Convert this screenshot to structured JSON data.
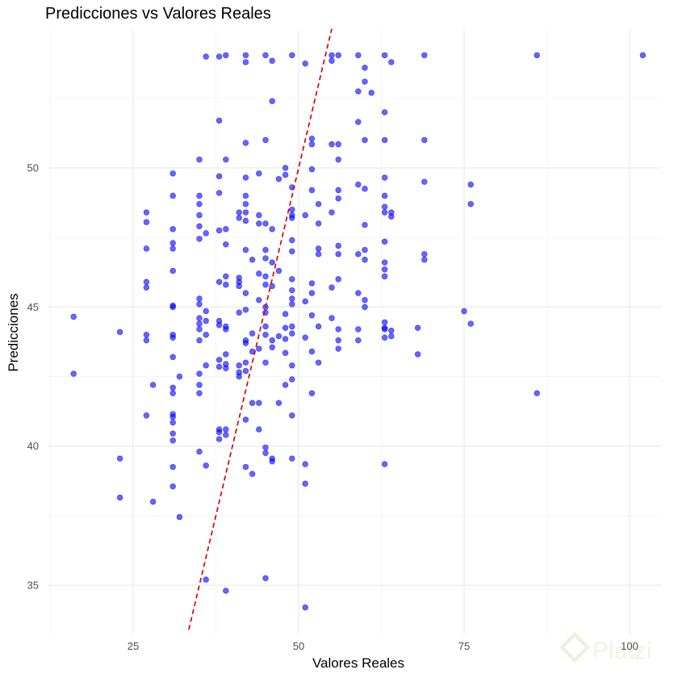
{
  "chart_data": {
    "type": "scatter",
    "title": "Predicciones vs Valores Reales",
    "xlabel": "Valores Reales",
    "ylabel": "Predicciones",
    "xlim": [
      12.5,
      105
    ],
    "ylim": [
      33.4,
      55
    ],
    "x_ticks": [
      25,
      50,
      75,
      100
    ],
    "y_ticks": [
      35,
      40,
      45,
      50
    ],
    "x_tick_labels": [
      "25",
      "50",
      "75",
      "100"
    ],
    "y_tick_labels": [
      "35",
      "40",
      "45",
      "50"
    ],
    "grid": true,
    "point_color": "#0000ff",
    "reference_line": {
      "style": "dashed",
      "color": "#dd0000",
      "description": "y = x"
    },
    "points": [
      [
        16,
        44.65
      ],
      [
        16,
        42.6
      ],
      [
        23,
        44.1
      ],
      [
        23,
        39.55
      ],
      [
        23,
        38.15
      ],
      [
        28,
        38.0
      ],
      [
        32,
        37.45
      ],
      [
        27,
        48.4
      ],
      [
        27,
        48.05
      ],
      [
        27,
        47.1
      ],
      [
        27,
        45.9
      ],
      [
        27,
        45.7
      ],
      [
        27,
        44.0
      ],
      [
        27,
        43.8
      ],
      [
        27,
        41.1
      ],
      [
        28,
        42.2
      ],
      [
        31,
        49.8
      ],
      [
        31,
        49.0
      ],
      [
        31,
        47.8
      ],
      [
        31,
        47.3
      ],
      [
        31,
        47.1
      ],
      [
        31,
        46.3
      ],
      [
        31,
        45.05
      ],
      [
        31,
        45.0
      ],
      [
        31,
        44.0
      ],
      [
        31,
        43.9
      ],
      [
        31,
        43.2
      ],
      [
        31,
        42.1
      ],
      [
        31,
        41.9
      ],
      [
        31,
        41.15
      ],
      [
        31,
        41.05
      ],
      [
        31,
        40.85
      ],
      [
        31,
        40.45
      ],
      [
        31,
        40.2
      ],
      [
        31,
        39.25
      ],
      [
        31,
        38.55
      ],
      [
        32,
        42.5
      ],
      [
        35,
        50.3
      ],
      [
        35,
        49.0
      ],
      [
        35,
        48.7
      ],
      [
        35,
        48.3
      ],
      [
        35,
        47.9
      ],
      [
        35,
        47.45
      ],
      [
        35,
        45.3
      ],
      [
        35,
        45.1
      ],
      [
        35,
        44.6
      ],
      [
        35,
        44.4
      ],
      [
        35,
        44.2
      ],
      [
        35,
        43.8
      ],
      [
        35,
        42.6
      ],
      [
        35,
        42.2
      ],
      [
        35,
        41.9
      ],
      [
        35,
        39.8
      ],
      [
        36,
        54.0
      ],
      [
        36,
        47.65
      ],
      [
        36,
        44.85
      ],
      [
        36,
        44.5
      ],
      [
        36,
        44.0
      ],
      [
        36,
        42.9
      ],
      [
        36,
        39.3
      ],
      [
        36,
        35.2
      ],
      [
        38,
        54.0
      ],
      [
        38,
        51.7
      ],
      [
        38,
        49.7
      ],
      [
        38,
        49.1
      ],
      [
        38,
        47.75
      ],
      [
        38,
        45.9
      ],
      [
        38,
        44.5
      ],
      [
        38,
        44.35
      ],
      [
        38,
        43.1
      ],
      [
        38,
        42.85
      ],
      [
        38,
        40.6
      ],
      [
        38,
        40.5
      ],
      [
        38,
        40.25
      ],
      [
        39,
        54.05
      ],
      [
        39,
        50.3
      ],
      [
        39,
        47.8
      ],
      [
        39,
        47.25
      ],
      [
        39,
        46.1
      ],
      [
        39,
        45.8
      ],
      [
        39,
        44.3
      ],
      [
        39,
        44.2
      ],
      [
        39,
        43.3
      ],
      [
        39,
        42.95
      ],
      [
        39,
        42.8
      ],
      [
        39,
        40.6
      ],
      [
        39,
        40.4
      ],
      [
        39,
        34.8
      ],
      [
        41,
        48.4
      ],
      [
        41,
        48.2
      ],
      [
        41,
        46.05
      ],
      [
        41,
        45.9
      ],
      [
        41,
        45.75
      ],
      [
        41,
        44.8
      ],
      [
        41,
        42.9
      ],
      [
        41,
        42.65
      ],
      [
        41,
        42.5
      ],
      [
        42,
        50.9
      ],
      [
        42,
        49.65
      ],
      [
        42,
        49.0
      ],
      [
        42,
        48.7
      ],
      [
        42,
        48.4
      ],
      [
        42,
        48.1
      ],
      [
        42,
        47.05
      ],
      [
        42,
        45.5
      ],
      [
        42,
        44.9
      ],
      [
        42,
        43.8
      ],
      [
        42,
        43.7
      ],
      [
        42,
        43.0
      ],
      [
        42,
        42.7
      ],
      [
        42,
        40.95
      ],
      [
        42,
        39.25
      ],
      [
        42,
        54.05
      ],
      [
        42,
        53.8
      ],
      [
        43,
        46.7
      ],
      [
        43,
        44.05
      ],
      [
        43,
        43.4
      ],
      [
        43,
        41.55
      ],
      [
        43,
        39.0
      ],
      [
        44,
        49.8
      ],
      [
        44,
        48.3
      ],
      [
        44,
        48.0
      ],
      [
        44,
        46.2
      ],
      [
        44,
        45.25
      ],
      [
        44,
        43.5
      ],
      [
        44,
        41.55
      ],
      [
        44,
        40.6
      ],
      [
        45,
        54.05
      ],
      [
        45,
        51.0
      ],
      [
        45,
        48.0
      ],
      [
        45,
        47.05
      ],
      [
        45,
        46.75
      ],
      [
        45,
        46.1
      ],
      [
        45,
        45.8
      ],
      [
        45,
        45.0
      ],
      [
        45,
        44.8
      ],
      [
        45,
        44.3
      ],
      [
        45,
        44.0
      ],
      [
        45,
        43.0
      ],
      [
        45,
        39.95
      ],
      [
        45,
        39.75
      ],
      [
        45,
        35.25
      ],
      [
        46,
        53.85
      ],
      [
        46,
        52.4
      ],
      [
        46,
        47.8
      ],
      [
        46,
        46.6
      ],
      [
        46,
        45.75
      ],
      [
        46,
        43.8
      ],
      [
        46,
        43.55
      ],
      [
        46,
        39.55
      ],
      [
        46,
        39.45
      ],
      [
        47,
        49.6
      ],
      [
        47,
        46.3
      ],
      [
        47,
        43.95
      ],
      [
        47,
        41.55
      ],
      [
        48,
        50.0
      ],
      [
        48,
        49.75
      ],
      [
        48,
        44.75
      ],
      [
        48,
        44.25
      ],
      [
        48,
        43.85
      ],
      [
        48,
        43.35
      ],
      [
        48,
        42.2
      ],
      [
        49,
        54.05
      ],
      [
        49,
        49.3
      ],
      [
        49,
        48.5
      ],
      [
        49,
        48.3
      ],
      [
        49,
        48.2
      ],
      [
        49,
        47.4
      ],
      [
        49,
        47.0
      ],
      [
        49,
        46.0
      ],
      [
        49,
        45.6
      ],
      [
        49,
        45.3
      ],
      [
        49,
        45.1
      ],
      [
        49,
        44.3
      ],
      [
        49,
        44.05
      ],
      [
        49,
        42.9
      ],
      [
        49,
        42.4
      ],
      [
        49,
        41.1
      ],
      [
        49,
        39.55
      ],
      [
        51,
        53.75
      ],
      [
        51,
        48.3
      ],
      [
        51,
        45.2
      ],
      [
        51,
        43.9
      ],
      [
        51,
        39.35
      ],
      [
        51,
        38.65
      ],
      [
        51,
        34.2
      ],
      [
        52,
        51.05
      ],
      [
        52,
        50.85
      ],
      [
        52,
        49.95
      ],
      [
        52,
        49.2
      ],
      [
        52,
        45.85
      ],
      [
        52,
        45.5
      ],
      [
        52,
        44.7
      ],
      [
        52,
        43.4
      ],
      [
        52,
        41.9
      ],
      [
        53,
        48.7
      ],
      [
        53,
        48.0
      ],
      [
        53,
        47.1
      ],
      [
        53,
        46.9
      ],
      [
        53,
        44.3
      ],
      [
        53,
        43.0
      ],
      [
        55,
        54.05
      ],
      [
        55,
        53.85
      ],
      [
        55,
        50.85
      ],
      [
        55,
        48.4
      ],
      [
        55,
        45.7
      ],
      [
        55,
        44.6
      ],
      [
        56,
        54.05
      ],
      [
        56,
        50.85
      ],
      [
        56,
        50.3
      ],
      [
        56,
        49.2
      ],
      [
        56,
        48.9
      ],
      [
        56,
        47.2
      ],
      [
        56,
        46.9
      ],
      [
        56,
        46.0
      ],
      [
        56,
        44.2
      ],
      [
        56,
        43.8
      ],
      [
        56,
        43.5
      ],
      [
        59,
        54.05
      ],
      [
        59,
        52.75
      ],
      [
        59,
        51.65
      ],
      [
        59,
        49.4
      ],
      [
        59,
        46.9
      ],
      [
        59,
        45.5
      ],
      [
        59,
        44.2
      ],
      [
        59,
        43.8
      ],
      [
        60,
        53.6
      ],
      [
        60,
        53.1
      ],
      [
        60,
        51.0
      ],
      [
        60,
        49.25
      ],
      [
        60,
        47.95
      ],
      [
        60,
        47.05
      ],
      [
        60,
        46.7
      ],
      [
        60,
        45.25
      ],
      [
        60,
        45.0
      ],
      [
        61,
        52.7
      ],
      [
        63,
        54.05
      ],
      [
        63,
        52.0
      ],
      [
        63,
        51.0
      ],
      [
        63,
        49.65
      ],
      [
        63,
        49.0
      ],
      [
        63,
        48.6
      ],
      [
        63,
        48.4
      ],
      [
        63,
        47.35
      ],
      [
        63,
        46.6
      ],
      [
        63,
        46.35
      ],
      [
        63,
        46.1
      ],
      [
        63,
        44.45
      ],
      [
        63,
        44.25
      ],
      [
        63,
        44.2
      ],
      [
        63,
        43.9
      ],
      [
        63,
        39.35
      ],
      [
        64,
        53.8
      ],
      [
        64,
        48.4
      ],
      [
        64,
        48.25
      ],
      [
        64,
        44.15
      ],
      [
        64,
        43.95
      ],
      [
        68,
        44.25
      ],
      [
        68,
        43.3
      ],
      [
        69,
        54.05
      ],
      [
        69,
        51.0
      ],
      [
        69,
        49.5
      ],
      [
        69,
        46.9
      ],
      [
        69,
        46.7
      ],
      [
        75,
        44.85
      ],
      [
        76,
        49.4
      ],
      [
        76,
        48.7
      ],
      [
        76,
        44.4
      ],
      [
        86,
        54.05
      ],
      [
        86,
        41.9
      ],
      [
        102,
        54.05
      ]
    ]
  },
  "watermark": {
    "text": "Platzi"
  }
}
